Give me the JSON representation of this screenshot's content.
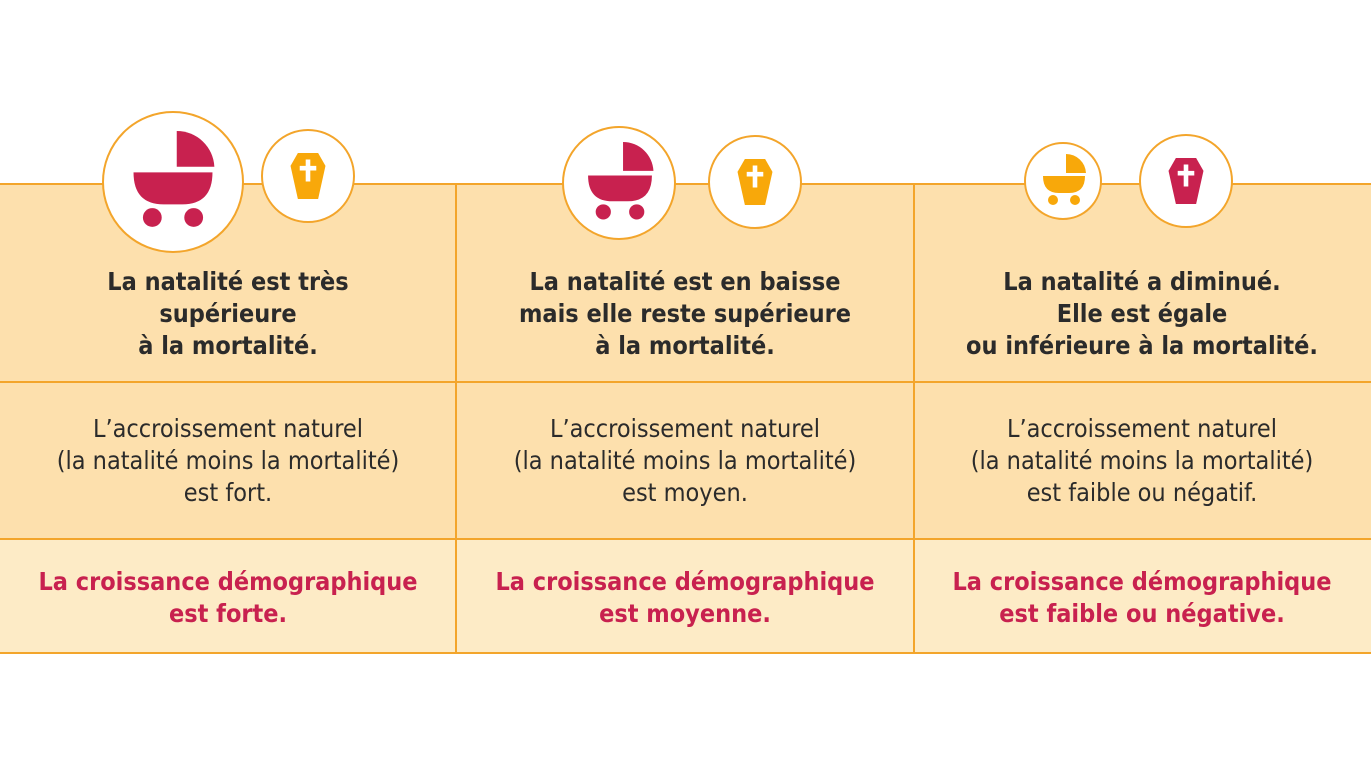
{
  "columns": [
    {
      "heading": [
        "La natalité est très",
        "supérieure",
        "à la mortalité."
      ],
      "body": [
        "L’accroissement naturel",
        "(la natalité moins la mortalité)",
        "est fort."
      ],
      "result": [
        "La croissance démographique",
        "est forte."
      ]
    },
    {
      "heading": [
        "La natalité est en baisse",
        "mais elle reste supérieure",
        "à la mortalité."
      ],
      "body": [
        "L’accroissement naturel",
        "(la natalité moins la mortalité)",
        "est moyen."
      ],
      "result": [
        "La croissance démographique",
        "est moyenne."
      ]
    },
    {
      "heading": [
        "La natalité a diminué.",
        "Elle est égale",
        "ou inférieure à la mortalité."
      ],
      "body": [
        "L’accroissement naturel",
        "(la natalité moins la mortalité)",
        "est faible ou négatif."
      ],
      "result": [
        "La croissance démographique",
        "est faible ou négative."
      ]
    }
  ]
}
